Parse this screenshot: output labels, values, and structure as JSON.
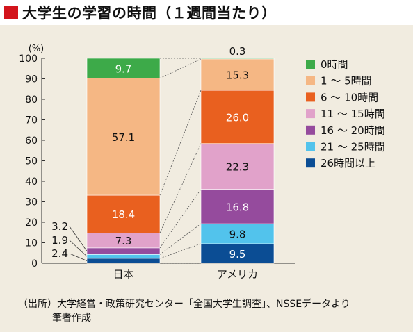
{
  "title": "大学生の学習の時間（１週間当たり）",
  "source_lines": [
    "（出所）大学経営・政策研究センター「全国大学生調査」、NSSEデータより",
    "筆者作成"
  ],
  "colors": {
    "title_marker": "#d3141c",
    "background": "#f1ece0"
  },
  "chart_data": {
    "type": "bar",
    "stacked": true,
    "unit_label": "(%)",
    "ylim": [
      0,
      100
    ],
    "yticks": [
      0,
      10,
      20,
      30,
      40,
      50,
      60,
      70,
      80,
      90,
      100
    ],
    "categories": [
      "日本",
      "アメリカ"
    ],
    "series": [
      {
        "name": "26時間以上",
        "color": "#0b4d94",
        "values": [
          2.4,
          9.5
        ],
        "label_color": "#ffffff"
      },
      {
        "name": "21 ～ 25時間",
        "color": "#52c3ec",
        "values": [
          1.9,
          9.8
        ],
        "label_color": "#111111"
      },
      {
        "name": "16 ～ 20時間",
        "color": "#954b9d",
        "values": [
          3.2,
          16.8
        ],
        "label_color": "#ffffff"
      },
      {
        "name": "11 ～ 15時間",
        "color": "#e1a2ca",
        "values": [
          7.3,
          22.3
        ],
        "label_color": "#111111"
      },
      {
        "name": "6 ～ 10時間",
        "color": "#e9601f",
        "values": [
          18.4,
          26.0
        ],
        "label_color": "#ffffff"
      },
      {
        "name": "1 ～ 5時間",
        "color": "#f5b784",
        "values": [
          57.1,
          15.3
        ],
        "label_color": "#111111"
      },
      {
        "name": "0時間",
        "color": "#3daa49",
        "values": [
          9.7,
          0.3
        ],
        "label_color": "#ffffff"
      }
    ],
    "legend_order": [
      "0時間",
      "1 ～ 5時間",
      "6 ～ 10時間",
      "11 ～ 15時間",
      "16 ～ 20時間",
      "21 ～ 25時間",
      "26時間以上"
    ],
    "legend_position": "right",
    "grid": false
  }
}
